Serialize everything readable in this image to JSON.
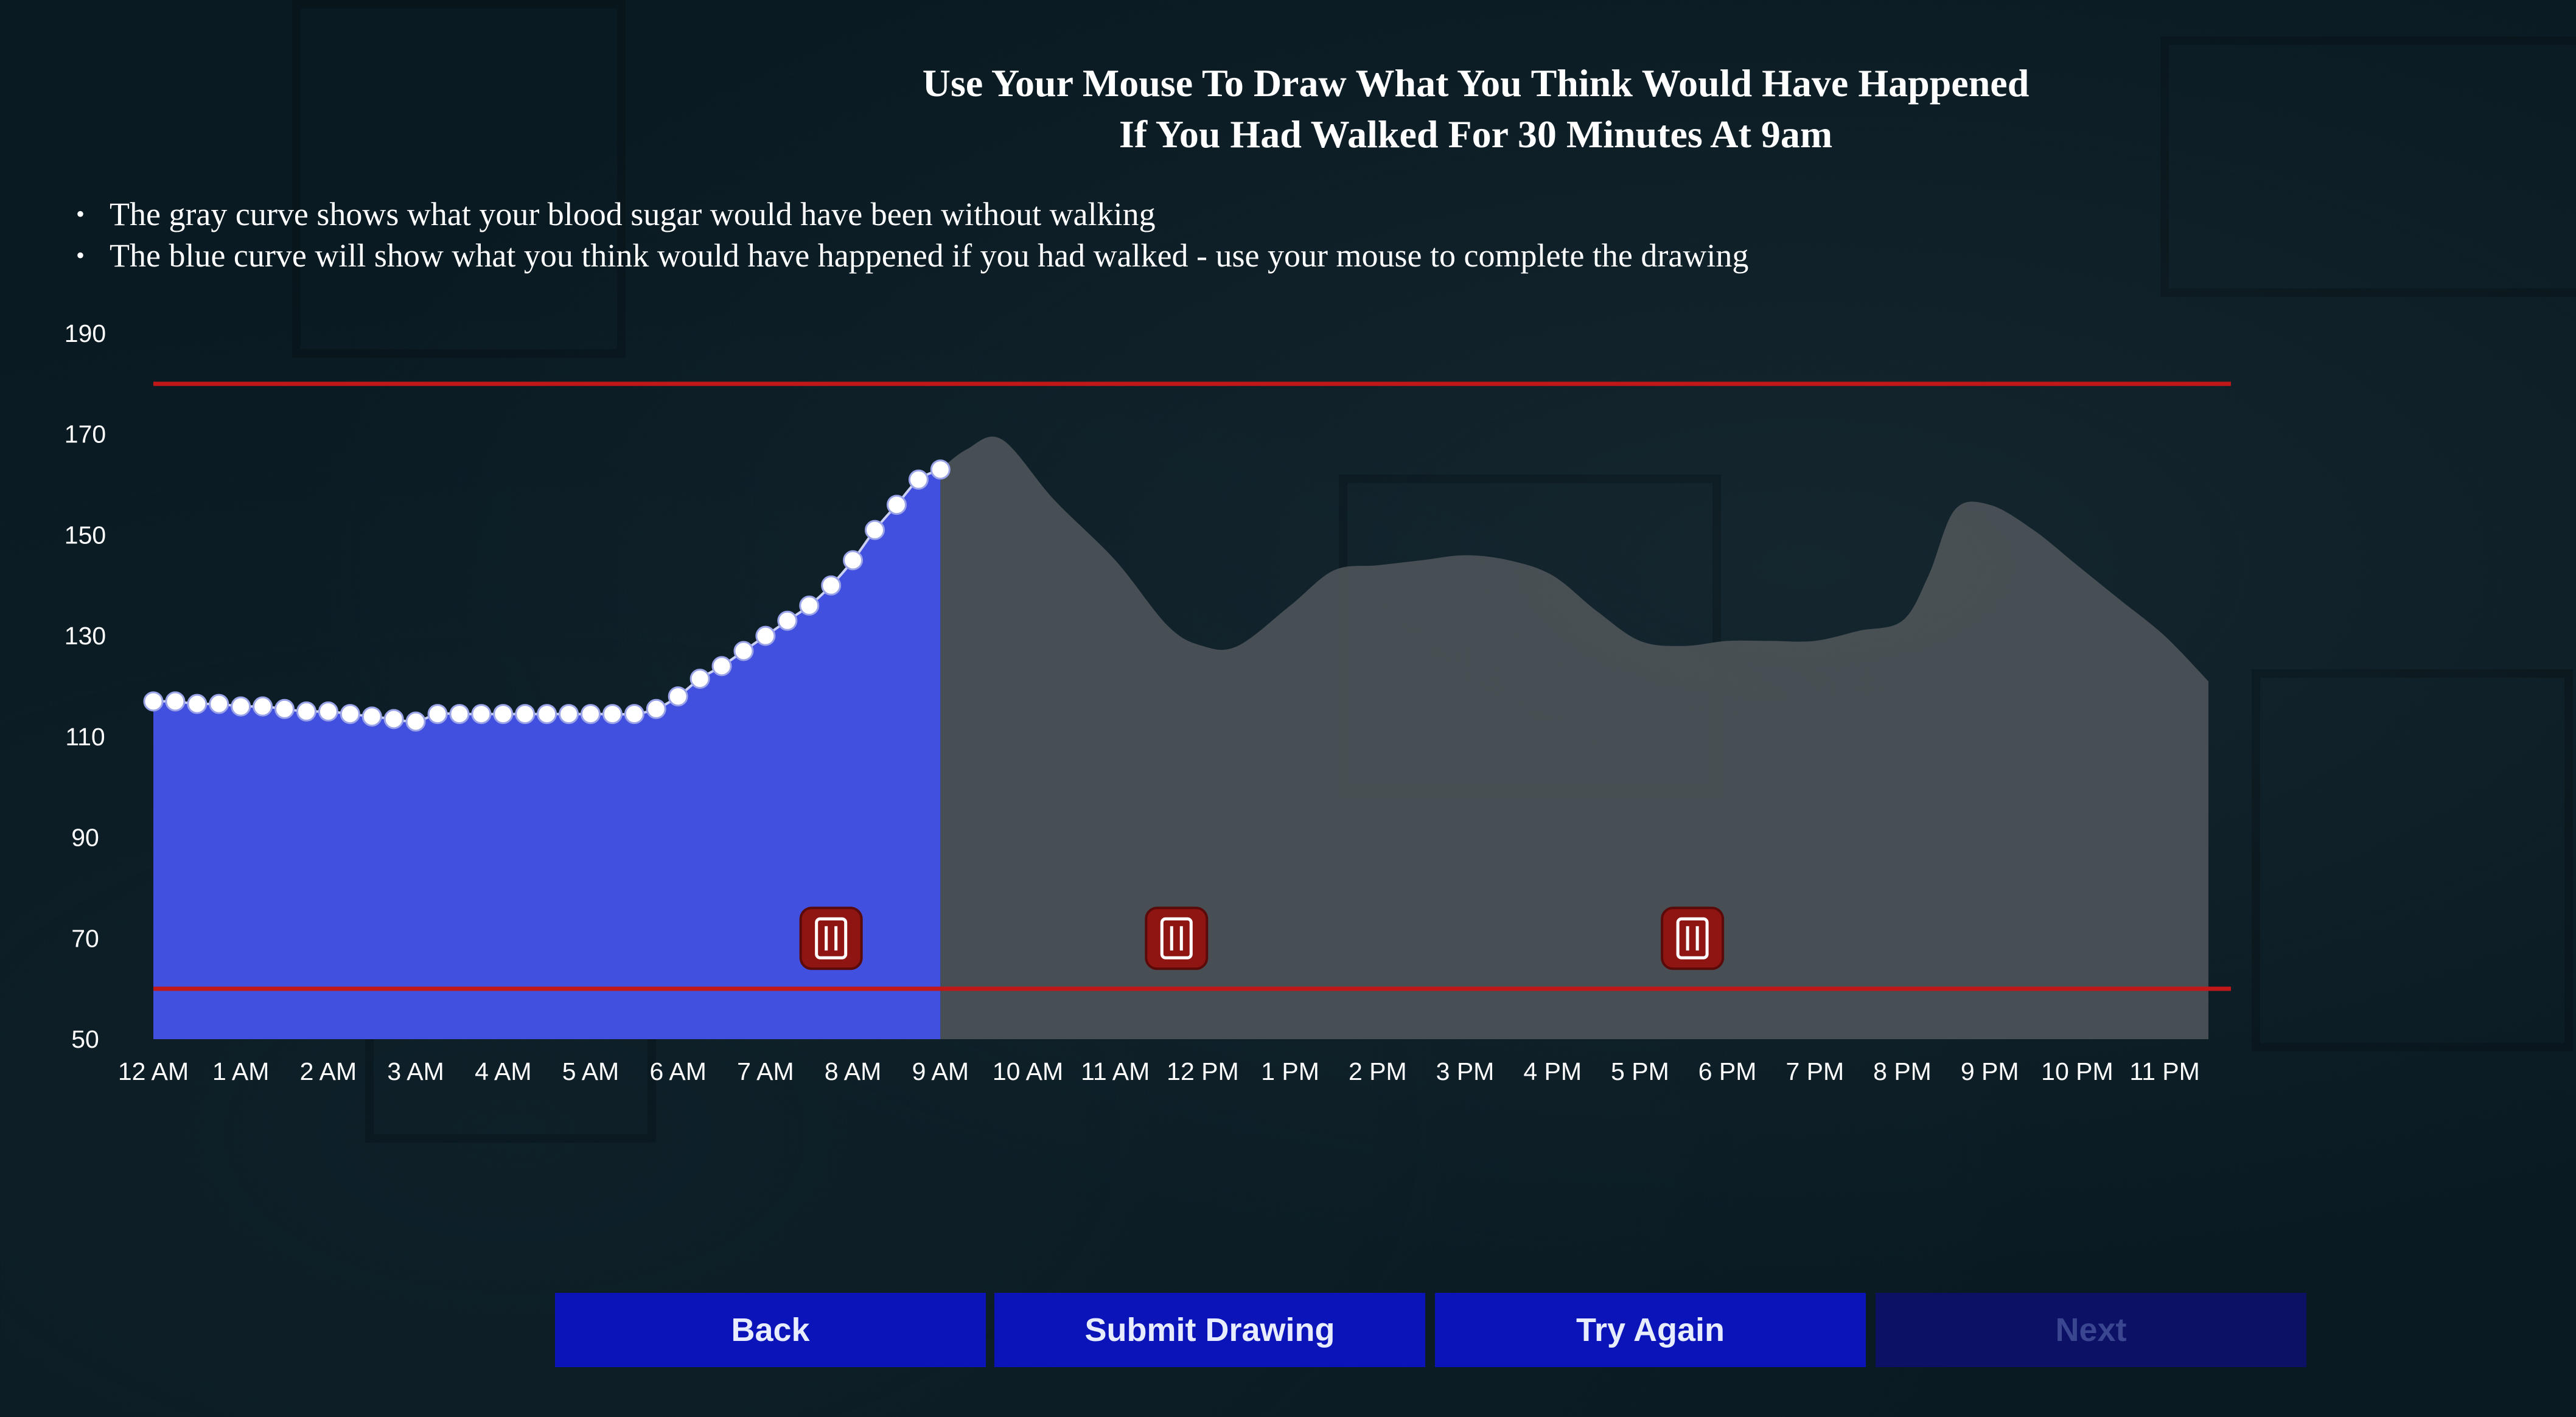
{
  "title": {
    "line1": "Use Your Mouse To Draw What You Think Would Have Happened",
    "line2": "If You Had Walked For 30 Minutes At 9am"
  },
  "bullets": [
    "The gray curve shows what your blood sugar would have been without walking",
    "The blue curve will show what you think would have happened if you had walked - use your mouse to complete the drawing"
  ],
  "buttons": {
    "back": "Back",
    "submit": "Submit Drawing",
    "try_again": "Try Again",
    "next": "Next"
  },
  "colors": {
    "drawn_fill": "#4250e0",
    "baseline_fill": "#4b5256",
    "threshold_line": "#c01818",
    "button": "#0a14b8",
    "button_disabled": "#0c1166",
    "meal_icon": "#8e1512"
  },
  "chart_data": {
    "type": "area",
    "x_tick_labels": [
      "12 AM",
      "1 AM",
      "2 AM",
      "3 AM",
      "4 AM",
      "5 AM",
      "6 AM",
      "7 AM",
      "8 AM",
      "9 AM",
      "10 AM",
      "11 AM",
      "12 PM",
      "1 PM",
      "2 PM",
      "3 PM",
      "4 PM",
      "5 PM",
      "6 PM",
      "7 PM",
      "8 PM",
      "9 PM",
      "10 PM",
      "11 PM"
    ],
    "y_ticks": [
      50,
      70,
      90,
      110,
      130,
      150,
      170,
      190
    ],
    "ylim": [
      50,
      190
    ],
    "xlim": [
      0,
      23.5
    ],
    "upper_threshold": 180,
    "lower_threshold": 60,
    "series": [
      {
        "role": "gray baseline (without walking)",
        "x": [
          9,
          9.3,
          9.7,
          10.3,
          11,
          11.6,
          12,
          12.4,
          13,
          13.5,
          14,
          14.5,
          15,
          15.5,
          16,
          16.5,
          17,
          17.5,
          18,
          18.5,
          19,
          19.5,
          20,
          20.3,
          20.6,
          21,
          21.5,
          22,
          22.5,
          23,
          23.5
        ],
        "y": [
          163,
          167,
          169,
          157,
          145,
          132,
          128,
          128,
          136,
          143,
          144,
          145,
          146,
          145,
          142,
          135,
          129,
          128,
          129,
          129,
          129,
          131,
          133,
          142,
          155,
          156,
          151,
          144,
          137,
          130,
          121
        ]
      },
      {
        "role": "blue drawn curve",
        "x": [
          0,
          0.25,
          0.5,
          0.75,
          1,
          1.25,
          1.5,
          1.75,
          2,
          2.25,
          2.5,
          2.75,
          3,
          3.25,
          3.5,
          3.75,
          4,
          4.25,
          4.5,
          4.75,
          5,
          5.25,
          5.5,
          5.75,
          6,
          6.25,
          6.5,
          6.75,
          7,
          7.25,
          7.5,
          7.75,
          8,
          8.25,
          8.5,
          8.75,
          9
        ],
        "y": [
          117,
          117,
          116.5,
          116.5,
          116,
          116,
          115.5,
          115,
          115,
          114.5,
          114,
          113.5,
          113,
          114.5,
          114.5,
          114.5,
          114.5,
          114.5,
          114.5,
          114.5,
          114.5,
          114.5,
          114.5,
          115.5,
          118,
          121.5,
          124,
          127,
          130,
          133,
          136,
          140,
          145,
          151,
          156,
          161,
          163
        ]
      }
    ],
    "meal_markers_x": [
      7.75,
      11.7,
      17.6
    ]
  }
}
